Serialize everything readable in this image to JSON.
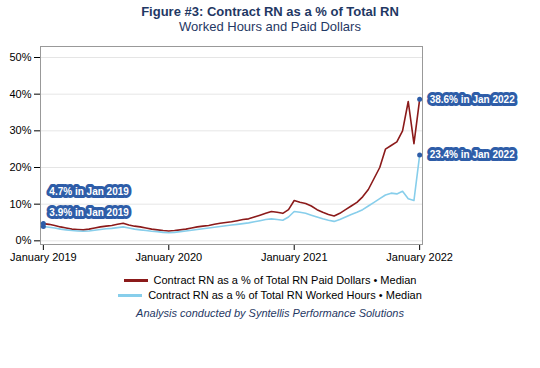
{
  "chart_data": {
    "type": "line",
    "title": "Figure #3: Contract RN as a % of Total RN",
    "subtitle": "Worked Hours and Paid Dollars",
    "categories": [
      "January 2019",
      null,
      null,
      null,
      null,
      null,
      null,
      null,
      null,
      null,
      null,
      null,
      null,
      null,
      null,
      null,
      null,
      null,
      null,
      null,
      null,
      null,
      "January 2020",
      null,
      null,
      null,
      null,
      null,
      null,
      null,
      null,
      null,
      null,
      null,
      null,
      null,
      null,
      null,
      null,
      null,
      null,
      null,
      null,
      null,
      "January 2021",
      null,
      null,
      null,
      null,
      null,
      null,
      null,
      null,
      null,
      null,
      null,
      null,
      null,
      null,
      null,
      null,
      null,
      null,
      null,
      null,
      null,
      "January 2022"
    ],
    "series": [
      {
        "name": "Contract RN as a % of Total RN Paid Dollars • Median",
        "color": "#8B1A1A",
        "values": [
          4.7,
          4.5,
          4.2,
          3.8,
          3.5,
          3.2,
          3.1,
          3.0,
          3.2,
          3.5,
          3.8,
          4.0,
          4.2,
          4.5,
          4.8,
          4.3,
          4.0,
          3.8,
          3.5,
          3.2,
          3.0,
          2.8,
          2.7,
          2.8,
          3.0,
          3.2,
          3.5,
          3.8,
          4.0,
          4.2,
          4.5,
          4.8,
          5.0,
          5.2,
          5.5,
          5.8,
          6.0,
          6.5,
          7.0,
          7.5,
          8.0,
          7.8,
          7.5,
          8.5,
          11.0,
          10.5,
          10.2,
          9.5,
          8.5,
          7.8,
          7.2,
          6.8,
          7.5,
          8.5,
          9.5,
          10.5,
          12.0,
          14.0,
          17.0,
          20.0,
          25.0,
          26.0,
          27.0,
          30.0,
          38.0,
          26.5,
          38.6
        ]
      },
      {
        "name": "Contract RN as a % of Total RN Worked Hours • Median",
        "color": "#87CEEB",
        "values": [
          3.9,
          3.7,
          3.5,
          3.2,
          3.0,
          2.8,
          2.7,
          2.6,
          2.7,
          2.9,
          3.1,
          3.3,
          3.4,
          3.6,
          3.8,
          3.5,
          3.2,
          3.0,
          2.8,
          2.6,
          2.5,
          2.3,
          2.2,
          2.3,
          2.5,
          2.7,
          2.9,
          3.1,
          3.3,
          3.5,
          3.7,
          3.9,
          4.1,
          4.3,
          4.5,
          4.7,
          4.9,
          5.2,
          5.5,
          5.8,
          6.0,
          5.8,
          5.6,
          6.5,
          8.0,
          7.8,
          7.5,
          7.0,
          6.5,
          6.0,
          5.6,
          5.3,
          5.8,
          6.5,
          7.2,
          7.8,
          8.5,
          9.5,
          10.5,
          11.5,
          12.5,
          13.0,
          12.8,
          13.5,
          11.5,
          11.0,
          23.4
        ]
      }
    ],
    "ylim": [
      -1,
      53
    ],
    "yticks": [
      {
        "value": 0,
        "label": "0%"
      },
      {
        "value": 10,
        "label": "10%"
      },
      {
        "value": 20,
        "label": "20%"
      },
      {
        "value": 30,
        "label": "30%"
      },
      {
        "value": 40,
        "label": "40%"
      },
      {
        "value": 50,
        "label": "50%"
      }
    ],
    "grid": true,
    "legend": "bottom",
    "annotations": [
      {
        "text": "4.7% in Jan 2019",
        "x": "January 2019",
        "y": 4.7
      },
      {
        "text": "3.9% in Jan 2019",
        "x": "January 2019",
        "y": 3.9
      },
      {
        "text": "38.6% in Jan 2022",
        "x": "January 2022",
        "y": 38.6
      },
      {
        "text": "23.4% in Jan 2022",
        "x": "January 2022",
        "y": 23.4
      }
    ],
    "caption": "Analysis conducted by Syntellis Performance Solutions"
  }
}
